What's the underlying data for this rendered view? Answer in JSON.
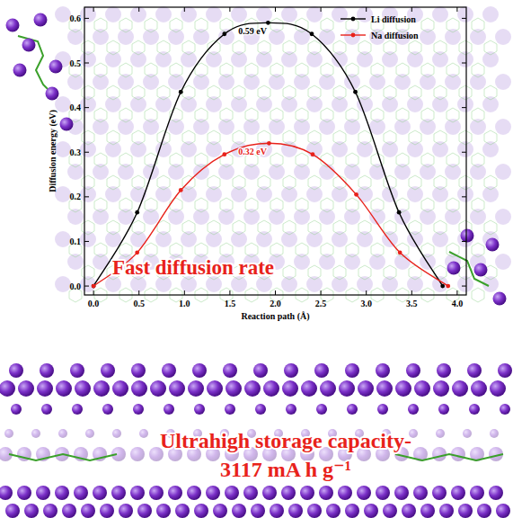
{
  "chart_data": {
    "type": "line",
    "x_label": "Reaction path (Å)",
    "y_label": "Diffusion energy (eV)",
    "xlim": [
      -0.1,
      4.1
    ],
    "ylim": [
      -0.02,
      0.625
    ],
    "xticks": [
      {
        "value": 0,
        "label": "0.0"
      },
      0.5,
      {
        "value": 1,
        "label": "1.0"
      },
      1.5,
      {
        "value": 2,
        "label": "2.0"
      },
      2.5,
      {
        "value": 3,
        "label": "3.0"
      },
      3.5,
      {
        "value": 4,
        "label": "4.0"
      }
    ],
    "yticks": [
      {
        "value": 0,
        "label": "0.0"
      },
      0.1,
      0.2,
      0.3,
      0.4,
      0.5,
      0.6
    ],
    "legend": "upper right",
    "grid": false,
    "series": [
      {
        "name": "Li diffusion",
        "color": "#000000",
        "marker": "circle",
        "line_style": "solid",
        "x": [
          0,
          0.48,
          0.96,
          1.44,
          1.92,
          2.4,
          2.88,
          3.36,
          3.84
        ],
        "values": [
          0,
          0.165,
          0.435,
          0.565,
          0.59,
          0.565,
          0.435,
          0.165,
          0
        ]
      },
      {
        "name": "Na diffusion",
        "color": "#e8221b",
        "marker": "circle",
        "line_style": "solid",
        "x": [
          0,
          0.48,
          0.96,
          1.44,
          1.93,
          2.41,
          2.89,
          3.37,
          3.9
        ],
        "values": [
          0,
          0.075,
          0.215,
          0.295,
          0.32,
          0.295,
          0.205,
          0.075,
          0
        ]
      }
    ],
    "annotations": [
      "0.59 eV",
      "0.32 eV",
      "Fast diffusion rate",
      "Ultrahigh storage capacity-",
      "3117 mA h g⁻¹"
    ]
  }
}
